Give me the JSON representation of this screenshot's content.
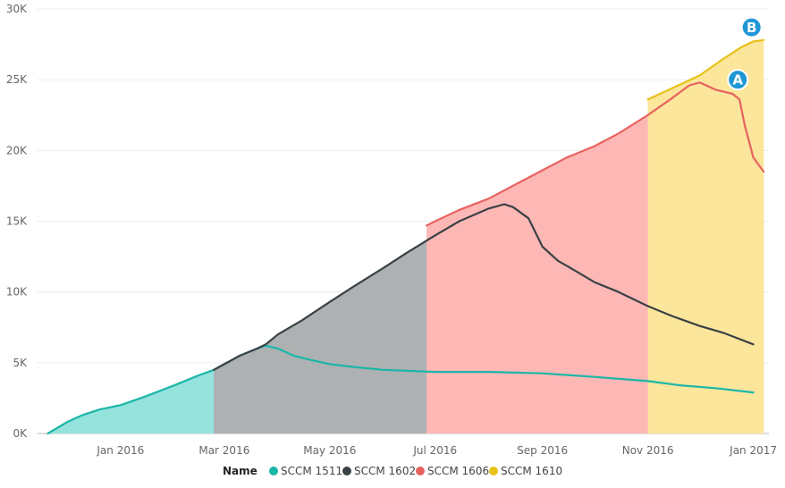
{
  "chart_data": {
    "type": "area",
    "y_ticks": [
      {
        "value": 0,
        "label": "0K"
      },
      {
        "value": 5000,
        "label": "5K"
      },
      {
        "value": 10000,
        "label": "10K"
      },
      {
        "value": 15000,
        "label": "15K"
      },
      {
        "value": 20000,
        "label": "20K"
      },
      {
        "value": 25000,
        "label": "25K"
      },
      {
        "value": 30000,
        "label": "30K"
      }
    ],
    "x_ticks": [
      {
        "value": "2016-01-01",
        "label": "Jan 2016"
      },
      {
        "value": "2016-03-01",
        "label": "Mar 2016"
      },
      {
        "value": "2016-05-01",
        "label": "May 2016"
      },
      {
        "value": "2016-07-01",
        "label": "Jul 2016"
      },
      {
        "value": "2016-09-01",
        "label": "Sep 2016"
      },
      {
        "value": "2016-11-01",
        "label": "Nov 2016"
      },
      {
        "value": "2017-01-01",
        "label": "Jan 2017"
      }
    ],
    "ylim": [
      0,
      30000
    ],
    "xlim": [
      "2015-11-14",
      "2017-01-10"
    ],
    "grid": true,
    "legend": {
      "position": "bottom",
      "title": "Name"
    },
    "series": [
      {
        "name": "SCCM 1511",
        "color": "#1ab6a8",
        "fill": "#95e3dc",
        "points": [
          [
            "2015-11-20",
            0
          ],
          [
            "2015-12-01",
            800
          ],
          [
            "2015-12-10",
            1300
          ],
          [
            "2015-12-20",
            1700
          ],
          [
            "2016-01-01",
            2000
          ],
          [
            "2016-01-15",
            2600
          ],
          [
            "2016-02-01",
            3400
          ],
          [
            "2016-02-15",
            4100
          ],
          [
            "2016-02-24",
            4500
          ],
          [
            "2016-03-01",
            4900
          ],
          [
            "2016-03-10",
            5500
          ],
          [
            "2016-03-20",
            6000
          ],
          [
            "2016-03-25",
            6200
          ],
          [
            "2016-04-01",
            6000
          ],
          [
            "2016-04-10",
            5500
          ],
          [
            "2016-04-20",
            5200
          ],
          [
            "2016-05-01",
            4900
          ],
          [
            "2016-05-15",
            4700
          ],
          [
            "2016-06-01",
            4500
          ],
          [
            "2016-07-01",
            4350
          ],
          [
            "2016-08-01",
            4350
          ],
          [
            "2016-09-01",
            4250
          ],
          [
            "2016-10-01",
            4000
          ],
          [
            "2016-11-01",
            3700
          ],
          [
            "2016-11-20",
            3400
          ],
          [
            "2016-12-10",
            3200
          ],
          [
            "2017-01-01",
            2900
          ]
        ]
      },
      {
        "name": "SCCM 1602",
        "color": "#3a4144",
        "fill": "#adb1b2",
        "points": [
          [
            "2016-02-24",
            4500
          ],
          [
            "2016-03-01",
            4900
          ],
          [
            "2016-03-10",
            5500
          ],
          [
            "2016-03-20",
            6000
          ],
          [
            "2016-03-25",
            6300
          ],
          [
            "2016-04-01",
            7000
          ],
          [
            "2016-04-15",
            8000
          ],
          [
            "2016-05-01",
            9300
          ],
          [
            "2016-05-15",
            10400
          ],
          [
            "2016-06-01",
            11700
          ],
          [
            "2016-06-15",
            12800
          ],
          [
            "2016-07-01",
            14000
          ],
          [
            "2016-07-15",
            15000
          ],
          [
            "2016-08-01",
            15900
          ],
          [
            "2016-08-10",
            16200
          ],
          [
            "2016-08-15",
            16000
          ],
          [
            "2016-08-24",
            15200
          ],
          [
            "2016-09-01",
            13200
          ],
          [
            "2016-09-10",
            12200
          ],
          [
            "2016-09-20",
            11500
          ],
          [
            "2016-10-01",
            10700
          ],
          [
            "2016-10-15",
            10000
          ],
          [
            "2016-11-01",
            9000
          ],
          [
            "2016-11-15",
            8300
          ],
          [
            "2016-12-01",
            7600
          ],
          [
            "2016-12-15",
            7100
          ],
          [
            "2017-01-01",
            6300
          ]
        ]
      },
      {
        "name": "SCCM 1606",
        "color": "#e8635f",
        "fill": "#fdb8b6",
        "points": [
          [
            "2016-06-26",
            14700
          ],
          [
            "2016-07-01",
            15000
          ],
          [
            "2016-07-15",
            15800
          ],
          [
            "2016-08-01",
            16600
          ],
          [
            "2016-08-15",
            17500
          ],
          [
            "2016-09-01",
            18600
          ],
          [
            "2016-09-15",
            19500
          ],
          [
            "2016-10-01",
            20300
          ],
          [
            "2016-10-15",
            21200
          ],
          [
            "2016-11-01",
            22500
          ],
          [
            "2016-11-15",
            23700
          ],
          [
            "2016-11-25",
            24600
          ],
          [
            "2016-12-01",
            24800
          ],
          [
            "2016-12-10",
            24300
          ],
          [
            "2016-12-20",
            24000
          ],
          [
            "2016-12-24",
            23600
          ],
          [
            "2016-12-27",
            21800
          ],
          [
            "2017-01-01",
            19500
          ],
          [
            "2017-01-07",
            18500
          ]
        ]
      },
      {
        "name": "SCCM 1610",
        "color": "#e9c219",
        "fill": "#fbe69c",
        "points": [
          [
            "2016-11-01",
            23600
          ],
          [
            "2016-11-15",
            24400
          ],
          [
            "2016-12-01",
            25300
          ],
          [
            "2016-12-15",
            26500
          ],
          [
            "2016-12-25",
            27300
          ],
          [
            "2017-01-01",
            27700
          ],
          [
            "2017-01-07",
            27800
          ]
        ]
      }
    ],
    "annotations": [
      {
        "label": "A",
        "x": "2016-12-23",
        "y": 25000,
        "color": "#1e97d4"
      },
      {
        "label": "B",
        "x": "2016-12-31",
        "y": 28700,
        "color": "#1e97d4"
      }
    ]
  }
}
